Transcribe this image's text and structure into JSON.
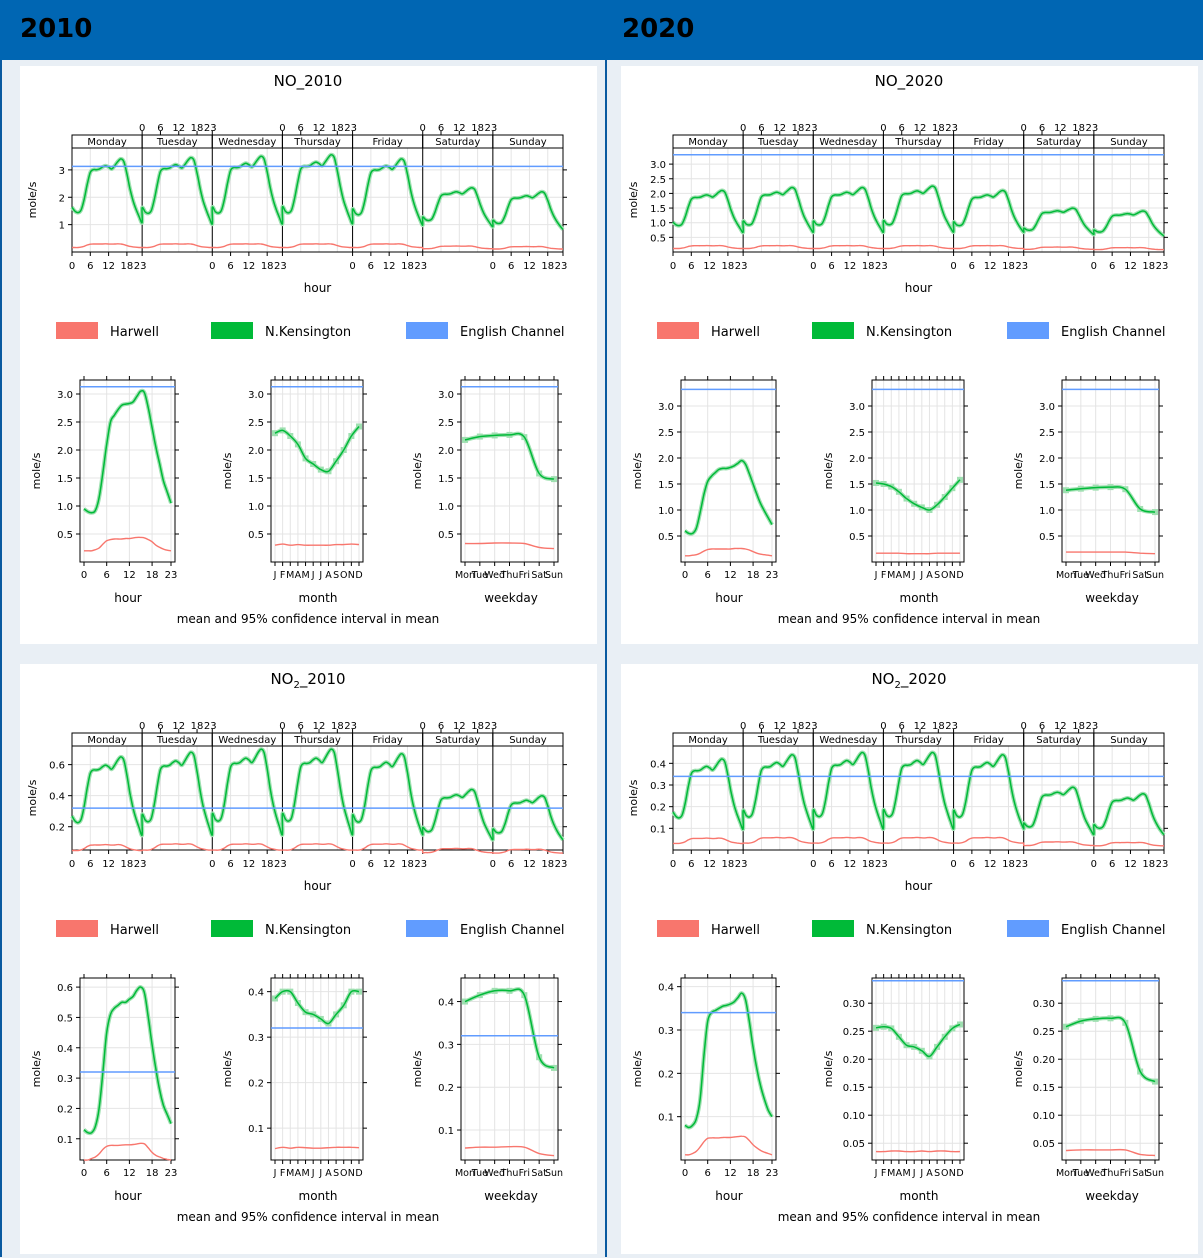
{
  "headers": {
    "left": "2010",
    "right": "2020"
  },
  "legend": [
    {
      "name": "Harwell",
      "color": "#f8766d"
    },
    {
      "name": "N.Kensington",
      "color": "#00ba38"
    },
    {
      "name": "English Channel",
      "color": "#619cff"
    }
  ],
  "labels": {
    "hour": "hour",
    "month": "month",
    "weekday": "weekday",
    "ylabel": "mole/s",
    "footnote": "mean and 95% confidence interval in mean",
    "days": [
      "Monday",
      "Tuesday",
      "Wednesday",
      "Thursday",
      "Friday",
      "Saturday",
      "Sunday"
    ],
    "weekday_ticks": [
      "Mon",
      "Tue",
      "Wed",
      "Thu",
      "Fri",
      "Sat",
      "Sun"
    ],
    "month_ticks": [
      "J",
      "F",
      "M",
      "A",
      "M",
      "J",
      "J",
      "A",
      "S",
      "O",
      "N",
      "D"
    ],
    "hour_ticks": [
      "0",
      "6",
      "12",
      "18",
      "23"
    ]
  },
  "chart_data": [
    {
      "id": "no-2010",
      "title": "NO_2010",
      "type": "line",
      "top_yticks": [
        "1",
        "2",
        "3"
      ],
      "top_ylim": [
        0,
        3.8
      ],
      "channel": 3.13,
      "weekly": {
        "harwell": [
          0.3,
          0.3,
          0.3,
          0.3,
          0.3,
          0.22,
          0.2
        ],
        "nk": [
          3.4,
          3.45,
          3.5,
          3.55,
          3.4,
          2.35,
          2.2
        ],
        "nk_min": [
          0.95,
          0.9,
          0.9,
          0.9,
          0.85,
          0.85,
          0.75
        ]
      },
      "hour": {
        "yticks": [
          "0.5",
          "1.0",
          "1.5",
          "2.0",
          "2.5",
          "3.0"
        ],
        "ylim": [
          0,
          3.25
        ],
        "channel": 3.13,
        "nk": [
          0.95,
          0.9,
          0.88,
          0.92,
          1.15,
          1.6,
          2.1,
          2.5,
          2.62,
          2.72,
          2.8,
          2.82,
          2.83,
          2.86,
          2.96,
          3.05,
          3.02,
          2.75,
          2.4,
          2.05,
          1.75,
          1.45,
          1.25,
          1.05
        ],
        "harwell": [
          0.2,
          0.2,
          0.2,
          0.22,
          0.25,
          0.32,
          0.38,
          0.4,
          0.41,
          0.41,
          0.41,
          0.42,
          0.42,
          0.43,
          0.44,
          0.44,
          0.43,
          0.4,
          0.36,
          0.3,
          0.26,
          0.23,
          0.21,
          0.2
        ]
      },
      "month": {
        "yticks": [
          "0.5",
          "1.0",
          "1.5",
          "2.0",
          "2.5",
          "3.0"
        ],
        "ylim": [
          0,
          3.25
        ],
        "channel": 3.13,
        "nk": [
          2.3,
          2.35,
          2.25,
          2.1,
          1.85,
          1.75,
          1.65,
          1.62,
          1.8,
          2.0,
          2.25,
          2.42
        ],
        "harwell": [
          0.3,
          0.32,
          0.3,
          0.31,
          0.3,
          0.3,
          0.3,
          0.3,
          0.31,
          0.31,
          0.32,
          0.31
        ]
      },
      "weekday": {
        "yticks": [
          "0.5",
          "1.0",
          "1.5",
          "2.0",
          "2.5",
          "3.0"
        ],
        "ylim": [
          0,
          3.25
        ],
        "channel": 3.13,
        "nk": [
          2.18,
          2.24,
          2.26,
          2.27,
          2.23,
          1.58,
          1.48
        ],
        "harwell": [
          0.33,
          0.33,
          0.34,
          0.34,
          0.33,
          0.26,
          0.24
        ]
      }
    },
    {
      "id": "no-2020",
      "title": "NO_2020",
      "type": "line",
      "top_yticks": [
        "0.5",
        "1.0",
        "1.5",
        "2.0",
        "2.5",
        "3.0"
      ],
      "top_ylim": [
        0,
        3.55
      ],
      "channel": 3.32,
      "weekly": {
        "harwell": [
          0.22,
          0.22,
          0.22,
          0.22,
          0.22,
          0.17,
          0.15
        ],
        "nk": [
          2.1,
          2.2,
          2.2,
          2.25,
          2.1,
          1.5,
          1.4
        ],
        "nk_min": [
          0.6,
          0.6,
          0.6,
          0.6,
          0.6,
          0.55,
          0.5
        ]
      },
      "hour": {
        "yticks": [
          "0.5",
          "1.0",
          "1.5",
          "2.0",
          "2.5",
          "3.0"
        ],
        "ylim": [
          0,
          3.5
        ],
        "channel": 3.32,
        "nk": [
          0.6,
          0.55,
          0.55,
          0.65,
          0.95,
          1.3,
          1.55,
          1.65,
          1.72,
          1.78,
          1.8,
          1.8,
          1.82,
          1.85,
          1.9,
          1.95,
          1.88,
          1.7,
          1.5,
          1.3,
          1.12,
          0.98,
          0.85,
          0.72
        ],
        "harwell": [
          0.12,
          0.12,
          0.13,
          0.14,
          0.17,
          0.21,
          0.24,
          0.25,
          0.25,
          0.25,
          0.25,
          0.25,
          0.25,
          0.26,
          0.26,
          0.26,
          0.25,
          0.23,
          0.2,
          0.17,
          0.15,
          0.14,
          0.13,
          0.12
        ]
      },
      "month": {
        "yticks": [
          "0.5",
          "1.0",
          "1.5",
          "2.0",
          "2.5",
          "3.0"
        ],
        "ylim": [
          0,
          3.5
        ],
        "channel": 3.32,
        "nk": [
          1.52,
          1.5,
          1.45,
          1.35,
          1.22,
          1.12,
          1.05,
          1.0,
          1.1,
          1.25,
          1.42,
          1.58
        ],
        "harwell": [
          0.17,
          0.17,
          0.17,
          0.17,
          0.16,
          0.16,
          0.16,
          0.16,
          0.17,
          0.17,
          0.17,
          0.17
        ]
      },
      "weekday": {
        "yticks": [
          "0.5",
          "1.0",
          "1.5",
          "2.0",
          "2.5",
          "3.0"
        ],
        "ylim": [
          0,
          3.5
        ],
        "channel": 3.32,
        "nk": [
          1.38,
          1.41,
          1.43,
          1.44,
          1.4,
          1.02,
          0.96
        ],
        "harwell": [
          0.19,
          0.19,
          0.19,
          0.19,
          0.19,
          0.17,
          0.16
        ]
      }
    },
    {
      "id": "no2-2010",
      "title_pre": "NO",
      "title_sub": "2",
      "title_post": "_2010",
      "type": "line",
      "top_yticks": [
        "0.2",
        "0.4",
        "0.6"
      ],
      "top_ylim": [
        0.05,
        0.72
      ],
      "channel": 0.32,
      "weekly": {
        "harwell": [
          0.085,
          0.09,
          0.09,
          0.09,
          0.09,
          0.06,
          0.055
        ],
        "nk": [
          0.65,
          0.68,
          0.7,
          0.7,
          0.67,
          0.44,
          0.4
        ],
        "nk_min": [
          0.12,
          0.12,
          0.12,
          0.12,
          0.12,
          0.1,
          0.1
        ]
      },
      "hour": {
        "yticks": [
          "0.1",
          "0.2",
          "0.3",
          "0.4",
          "0.5",
          "0.6"
        ],
        "ylim": [
          0.03,
          0.63
        ],
        "channel": 0.32,
        "nk": [
          0.13,
          0.12,
          0.12,
          0.14,
          0.2,
          0.32,
          0.45,
          0.51,
          0.53,
          0.54,
          0.55,
          0.55,
          0.56,
          0.57,
          0.59,
          0.6,
          0.58,
          0.5,
          0.41,
          0.33,
          0.26,
          0.21,
          0.18,
          0.15
        ],
        "harwell": [
          0.03,
          0.03,
          0.035,
          0.04,
          0.05,
          0.065,
          0.075,
          0.078,
          0.078,
          0.078,
          0.079,
          0.08,
          0.08,
          0.081,
          0.083,
          0.085,
          0.083,
          0.07,
          0.055,
          0.045,
          0.04,
          0.035,
          0.032,
          0.03
        ]
      },
      "month": {
        "yticks": [
          "0.1",
          "0.2",
          "0.3",
          "0.4"
        ],
        "ylim": [
          0.03,
          0.43
        ],
        "channel": 0.32,
        "nk": [
          0.385,
          0.4,
          0.4,
          0.375,
          0.355,
          0.35,
          0.34,
          0.33,
          0.35,
          0.37,
          0.4,
          0.4
        ],
        "harwell": [
          0.055,
          0.058,
          0.056,
          0.058,
          0.057,
          0.056,
          0.056,
          0.057,
          0.058,
          0.058,
          0.058,
          0.057
        ]
      },
      "weekday": {
        "yticks": [
          "0.1",
          "0.2",
          "0.3",
          "0.4"
        ],
        "ylim": [
          0.03,
          0.455
        ],
        "channel": 0.32,
        "nk": [
          0.4,
          0.415,
          0.425,
          0.425,
          0.415,
          0.27,
          0.245
        ],
        "harwell": [
          0.058,
          0.06,
          0.06,
          0.061,
          0.06,
          0.045,
          0.04
        ]
      }
    },
    {
      "id": "no2-2020",
      "title_pre": "NO",
      "title_sub": "2",
      "title_post": "_2020",
      "type": "line",
      "top_yticks": [
        "0.1",
        "0.2",
        "0.3",
        "0.4"
      ],
      "top_ylim": [
        0.0,
        0.48
      ],
      "channel": 0.34,
      "weekly": {
        "harwell": [
          0.055,
          0.058,
          0.058,
          0.058,
          0.058,
          0.038,
          0.035
        ],
        "nk": [
          0.42,
          0.44,
          0.45,
          0.45,
          0.44,
          0.29,
          0.26
        ],
        "nk_min": [
          0.08,
          0.08,
          0.08,
          0.08,
          0.08,
          0.06,
          0.06
        ]
      },
      "hour": {
        "yticks": [
          "0.1",
          "0.2",
          "0.3",
          "0.4"
        ],
        "ylim": [
          0.0,
          0.42
        ],
        "channel": 0.34,
        "nk": [
          0.08,
          0.075,
          0.08,
          0.095,
          0.14,
          0.24,
          0.32,
          0.34,
          0.345,
          0.35,
          0.355,
          0.357,
          0.36,
          0.365,
          0.375,
          0.385,
          0.37,
          0.32,
          0.26,
          0.21,
          0.17,
          0.14,
          0.115,
          0.1
        ],
        "harwell": [
          0.012,
          0.012,
          0.015,
          0.02,
          0.03,
          0.042,
          0.05,
          0.051,
          0.051,
          0.051,
          0.052,
          0.052,
          0.052,
          0.053,
          0.054,
          0.055,
          0.053,
          0.045,
          0.035,
          0.028,
          0.022,
          0.018,
          0.015,
          0.012
        ]
      },
      "month": {
        "yticks": [
          "0.05",
          "0.10",
          "0.15",
          "0.20",
          "0.25",
          "0.30"
        ],
        "ylim": [
          0.02,
          0.345
        ],
        "channel": 0.34,
        "nk": [
          0.256,
          0.258,
          0.255,
          0.24,
          0.225,
          0.222,
          0.215,
          0.205,
          0.222,
          0.24,
          0.255,
          0.262
        ],
        "harwell": [
          0.035,
          0.035,
          0.036,
          0.036,
          0.035,
          0.035,
          0.036,
          0.035,
          0.036,
          0.036,
          0.035,
          0.035
        ]
      },
      "weekday": {
        "yticks": [
          "0.05",
          "0.10",
          "0.15",
          "0.20",
          "0.25",
          "0.30"
        ],
        "ylim": [
          0.02,
          0.345
        ],
        "channel": 0.34,
        "nk": [
          0.258,
          0.268,
          0.272,
          0.273,
          0.265,
          0.178,
          0.16
        ],
        "harwell": [
          0.037,
          0.038,
          0.038,
          0.038,
          0.038,
          0.03,
          0.028
        ]
      }
    }
  ]
}
